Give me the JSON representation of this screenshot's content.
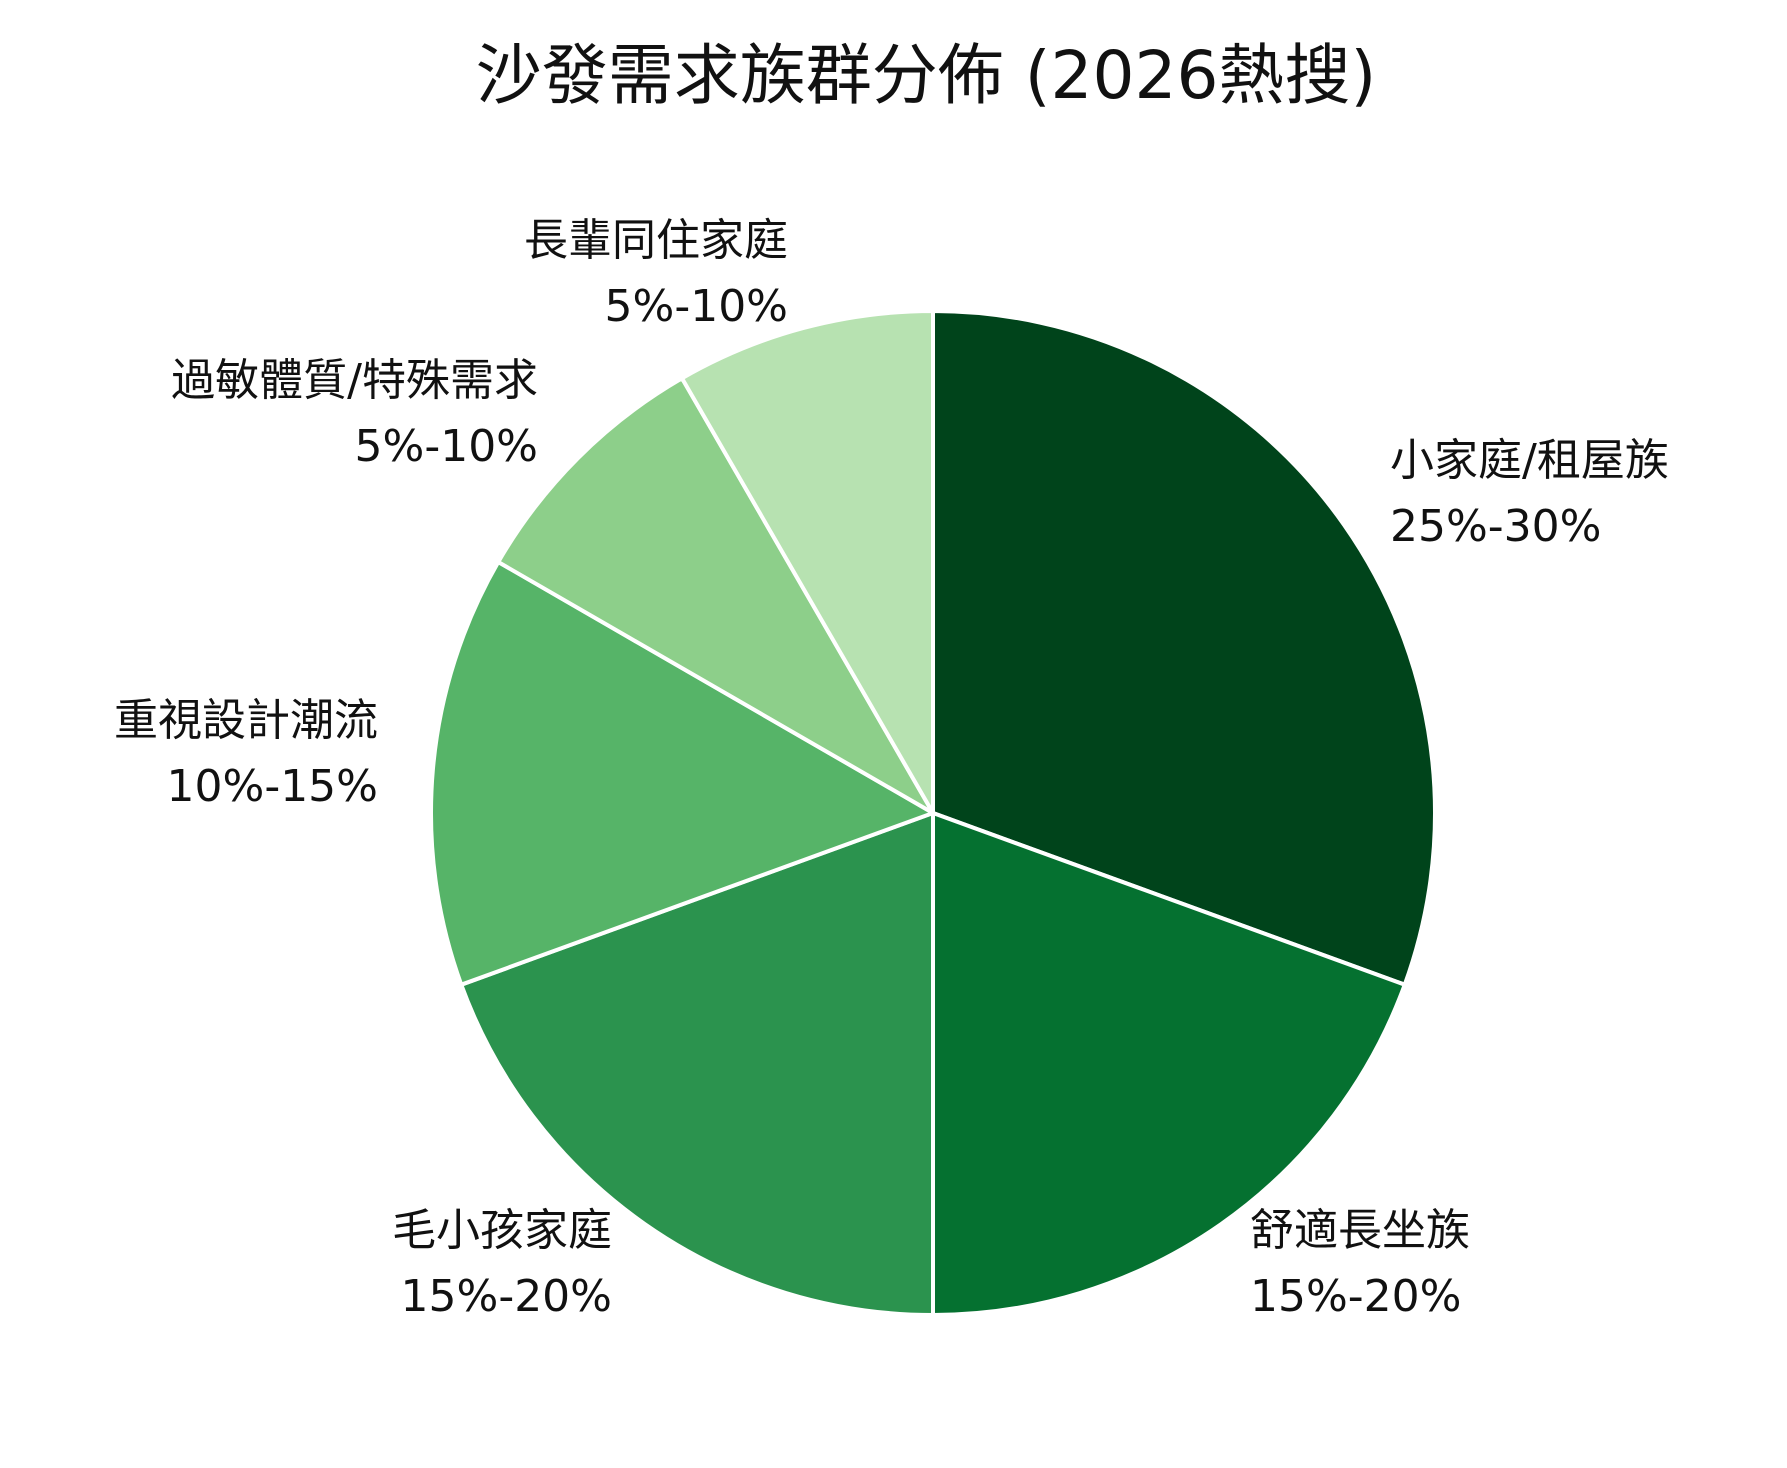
{
  "chart_data": {
    "type": "pie",
    "title": "沙發需求族群分佈 (2026熱搜)",
    "start_angle_deg": 90,
    "direction": "clockwise",
    "slices": [
      {
        "name": "小家庭/租屋族",
        "range": "25%-30%",
        "value": 27.5,
        "color": "#00441b"
      },
      {
        "name": "舒適長坐族",
        "range": "15%-20%",
        "value": 17.5,
        "color": "#057130"
      },
      {
        "name": "毛小孩家庭",
        "range": "15%-20%",
        "value": 17.5,
        "color": "#2b934e"
      },
      {
        "name": "重視設計潮流",
        "range": "10%-15%",
        "value": 12.5,
        "color": "#56b468"
      },
      {
        "name": "過敏體質/特殊需求",
        "range": "5%-10%",
        "value": 7.5,
        "color": "#8dcf8a"
      },
      {
        "name": "長輩同住家庭",
        "range": "5%-10%",
        "value": 7.5,
        "color": "#b7e2b1"
      }
    ]
  }
}
